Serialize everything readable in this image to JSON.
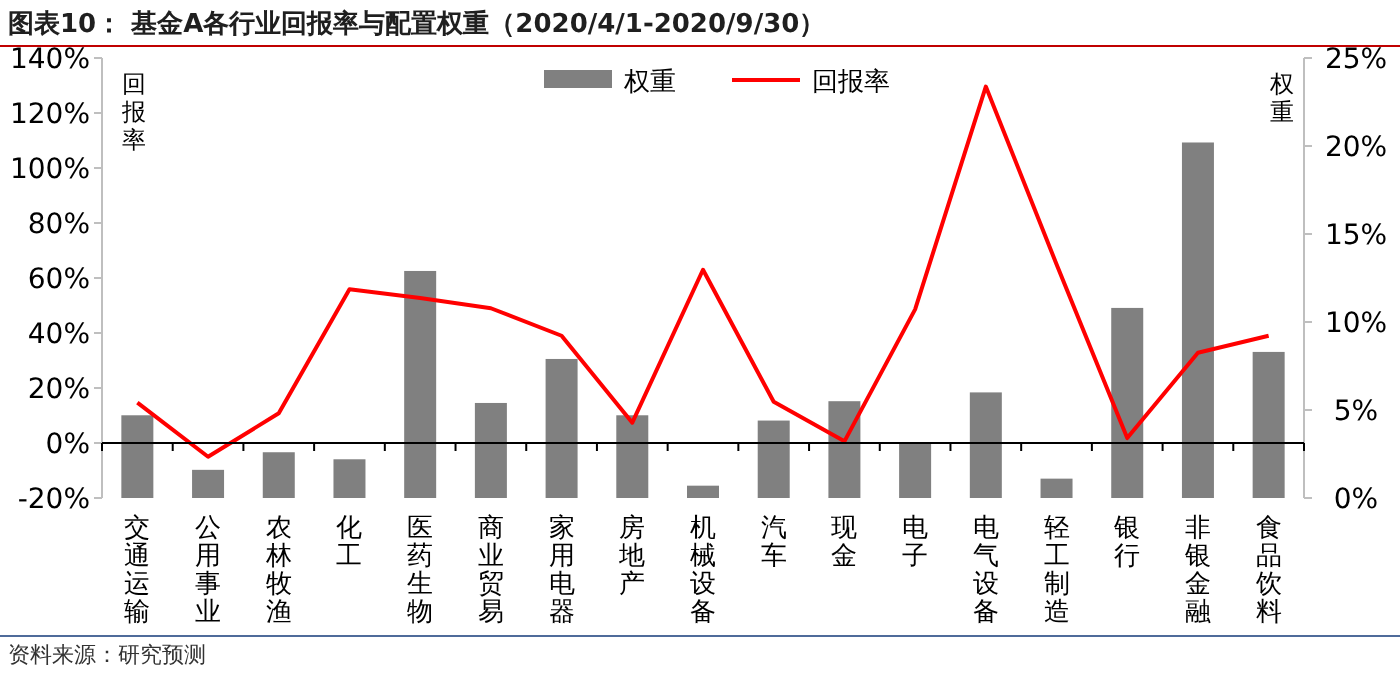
{
  "chart_data": {
    "type": "bar",
    "title": "图表10：  基金A各行业回报率与配置权重（2020/4/1-2020/9/30）",
    "categories": [
      "交通运输",
      "公用事业",
      "农林牧渔",
      "化工",
      "医药生物",
      "商业贸易",
      "家用电器",
      "房地产",
      "机械设备",
      "汽车",
      "现金",
      "电子",
      "电气设备",
      "轻工制造",
      "银行",
      "非银金融",
      "食品饮料"
    ],
    "series": [
      {
        "name": "权重",
        "axis": "y2",
        "color": "#808080",
        "values": [
          4.7,
          1.6,
          2.6,
          2.2,
          12.9,
          5.4,
          7.9,
          4.7,
          0.7,
          4.4,
          5.5,
          3.1,
          6.0,
          1.1,
          10.8,
          20.2,
          8.3
        ]
      },
      {
        "name": "回报率",
        "type": "line",
        "color": "#ff0000",
        "values": [
          14.7,
          -5,
          10.8,
          55.9,
          52.7,
          49,
          39,
          7.4,
          63,
          15,
          0.6,
          48.6,
          129.6,
          65,
          1.8,
          32.8,
          39
        ]
      }
    ],
    "ylabel": "回报率",
    "y2label": "权重",
    "ylim": [
      -20,
      140
    ],
    "yticks": [
      {
        "value": -20,
        "label": "-20%"
      },
      {
        "value": 0,
        "label": "0%"
      },
      {
        "value": 20,
        "label": "20%"
      },
      {
        "value": 40,
        "label": "40%"
      },
      {
        "value": 60,
        "label": "60%"
      },
      {
        "value": 80,
        "label": "80%"
      },
      {
        "value": 100,
        "label": "100%"
      },
      {
        "value": 120,
        "label": "120%"
      },
      {
        "value": 140,
        "label": "140%"
      }
    ],
    "y2lim": [
      0,
      25
    ],
    "y2ticks": [
      {
        "value": 0,
        "label": "0%"
      },
      {
        "value": 5,
        "label": "5%"
      },
      {
        "value": 10,
        "label": "10%"
      },
      {
        "value": 15,
        "label": "15%"
      },
      {
        "value": 20,
        "label": "20%"
      },
      {
        "value": 25,
        "label": "25%"
      }
    ],
    "legend": "top",
    "annotations": [
      "资料来源：研究预测"
    ]
  }
}
